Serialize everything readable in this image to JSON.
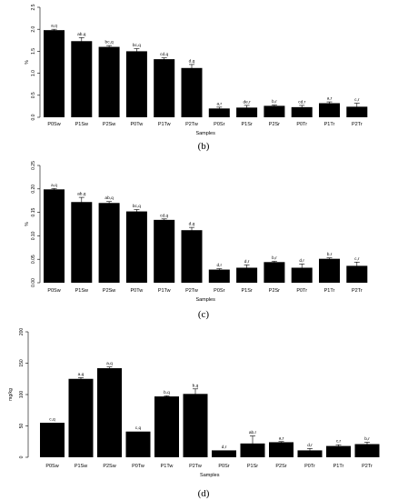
{
  "chart_data": [
    {
      "type": "bar",
      "panel": "(b)",
      "ylabel": "%",
      "xlabel": "Samples",
      "ylim": [
        0,
        2.5
      ],
      "yticks": [
        0.0,
        0.5,
        1.0,
        1.5,
        2.0,
        2.5
      ],
      "ytick_labels": [
        "0.0",
        "0.5",
        "1.0",
        "1.5",
        "2.0",
        "2.5"
      ],
      "categories": [
        "P0Sw",
        "P1Sw",
        "P2Sw",
        "P0Tw",
        "P1Tw",
        "P2Tw",
        "P0Sr",
        "P1Sr",
        "P2Sr",
        "P0Tr",
        "P1Tr",
        "P2Tr"
      ],
      "values": [
        1.98,
        1.73,
        1.6,
        1.5,
        1.32,
        1.12,
        0.2,
        0.22,
        0.26,
        0.23,
        0.32,
        0.24
      ],
      "errors": [
        0.02,
        0.08,
        0.03,
        0.06,
        0.03,
        0.08,
        0.03,
        0.05,
        0.02,
        0.04,
        0.03,
        0.08
      ],
      "labels": [
        "a,q",
        "ab,q",
        "bc,q",
        "bc,q",
        "cd,q",
        "d,q",
        "a,r",
        "de,r",
        "b,r",
        "cd,r",
        "a,r",
        "c,r"
      ]
    },
    {
      "type": "bar",
      "panel": "(c)",
      "ylabel": "%",
      "xlabel": "Samples",
      "ylim": [
        0,
        0.25
      ],
      "yticks": [
        0.0,
        0.05,
        0.1,
        0.15,
        0.2,
        0.25
      ],
      "ytick_labels": [
        "0.00",
        "0.05",
        "0.10",
        "0.15",
        "0.20",
        "0.25"
      ],
      "categories": [
        "P0Sw",
        "P1Sw",
        "P2Sw",
        "P0Tw",
        "P1Tw",
        "P2Tw",
        "P0Sr",
        "P1Sr",
        "P2Sr",
        "P0Tr",
        "P1Tr",
        "P2Tr"
      ],
      "values": [
        0.199,
        0.172,
        0.17,
        0.152,
        0.134,
        0.112,
        0.028,
        0.032,
        0.044,
        0.032,
        0.051,
        0.036
      ],
      "errors": [
        0.002,
        0.01,
        0.003,
        0.004,
        0.002,
        0.006,
        0.002,
        0.006,
        0.002,
        0.008,
        0.002,
        0.008
      ],
      "labels": [
        "a,q",
        "ab,q",
        "ab,q",
        "bc,q",
        "cd,q",
        "d,q",
        "d,r",
        "d,r",
        "b,r",
        "d,r",
        "b,r",
        "c,r"
      ]
    },
    {
      "type": "bar",
      "panel": "(d)",
      "ylabel": "mg/kg",
      "xlabel": "Samples",
      "ylim": [
        0,
        200
      ],
      "yticks": [
        0,
        50,
        100,
        150,
        200
      ],
      "ytick_labels": [
        "0",
        "50",
        "100",
        "150",
        "200"
      ],
      "categories": [
        "P0Sw",
        "P1Sw",
        "P2Sw",
        "P0Tw",
        "P1Tw",
        "P2Tw",
        "P0Sr",
        "P1Sr",
        "P2Sr",
        "P0Tr",
        "P1Tr",
        "P2Tr"
      ],
      "values": [
        55,
        125,
        142,
        41,
        97,
        101,
        11,
        22,
        24,
        11,
        18,
        21
      ],
      "errors": [
        0,
        2,
        2,
        0,
        1,
        8,
        0,
        12,
        1,
        3,
        2,
        3
      ],
      "labels": [
        "c,q",
        "a,q",
        "a,q",
        "c,q",
        "b,q",
        "b,q",
        "d,r",
        "ab,r",
        "a,r",
        "d,r",
        "c,r",
        "b,r"
      ]
    }
  ]
}
